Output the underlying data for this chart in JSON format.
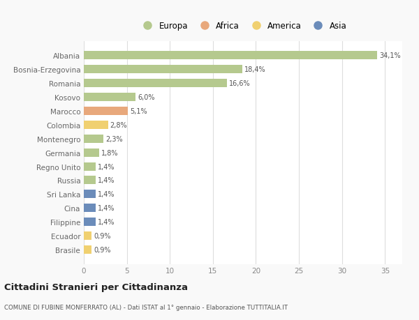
{
  "categories": [
    "Albania",
    "Bosnia-Erzegovina",
    "Romania",
    "Kosovo",
    "Marocco",
    "Colombia",
    "Montenegro",
    "Germania",
    "Regno Unito",
    "Russia",
    "Sri Lanka",
    "Cina",
    "Filippine",
    "Ecuador",
    "Brasile"
  ],
  "values": [
    34.1,
    18.4,
    16.6,
    6.0,
    5.1,
    2.8,
    2.3,
    1.8,
    1.4,
    1.4,
    1.4,
    1.4,
    1.4,
    0.9,
    0.9
  ],
  "labels": [
    "34,1%",
    "18,4%",
    "16,6%",
    "6,0%",
    "5,1%",
    "2,8%",
    "2,3%",
    "1,8%",
    "1,4%",
    "1,4%",
    "1,4%",
    "1,4%",
    "1,4%",
    "0,9%",
    "0,9%"
  ],
  "continents": [
    "Europa",
    "Europa",
    "Europa",
    "Europa",
    "Africa",
    "America",
    "Europa",
    "Europa",
    "Europa",
    "Europa",
    "Asia",
    "Asia",
    "Asia",
    "America",
    "America"
  ],
  "continent_colors": {
    "Europa": "#b5c98e",
    "Africa": "#e8a87c",
    "America": "#f0d070",
    "Asia": "#6b8cba"
  },
  "legend_items": [
    "Europa",
    "Africa",
    "America",
    "Asia"
  ],
  "legend_colors": [
    "#b5c98e",
    "#e8a87c",
    "#f0d070",
    "#6b8cba"
  ],
  "title": "Cittadini Stranieri per Cittadinanza",
  "subtitle": "COMUNE DI FUBINE MONFERRATO (AL) - Dati ISTAT al 1° gennaio - Elaborazione TUTTITALIA.IT",
  "xlim": [
    0,
    37
  ],
  "xticks": [
    0,
    5,
    10,
    15,
    20,
    25,
    30,
    35
  ],
  "background_color": "#f9f9f9",
  "plot_background": "#ffffff",
  "grid_color": "#dddddd"
}
